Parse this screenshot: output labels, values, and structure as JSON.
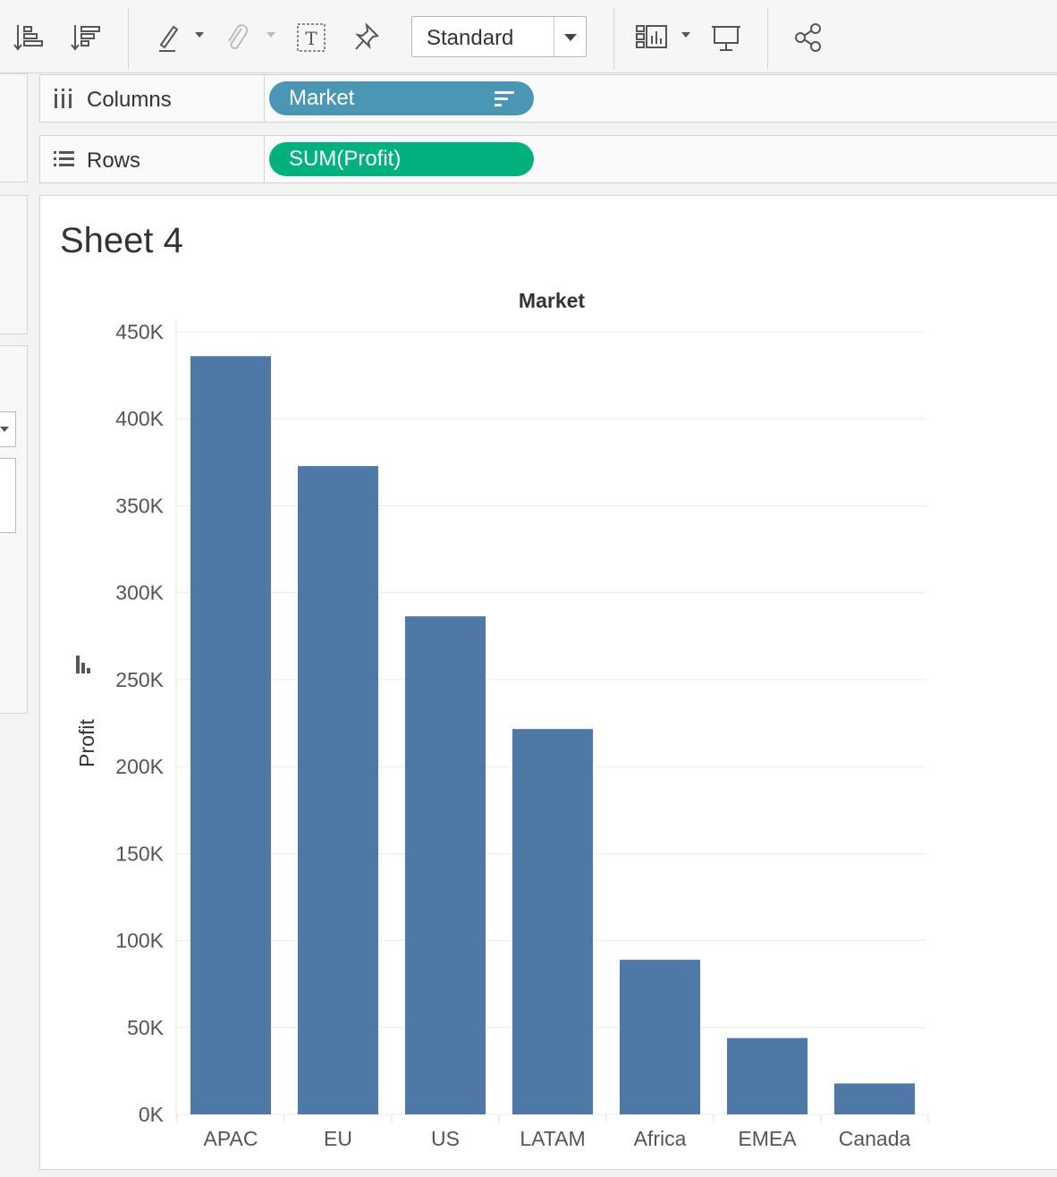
{
  "toolbar": {
    "fit_label": "Standard",
    "icons": [
      "sort-ascending-icon",
      "sort-descending-icon",
      "highlight-icon",
      "attach-icon",
      "text-label-icon",
      "pin-icon",
      "show-cards-icon",
      "presentation-icon",
      "share-icon"
    ]
  },
  "shelves": {
    "columns_label": "Columns",
    "columns_pill": "Market",
    "rows_label": "Rows",
    "rows_pill": "SUM(Profit)"
  },
  "sheet": {
    "title": "Sheet 4"
  },
  "chart_data": {
    "type": "bar",
    "title": "Market",
    "xlabel": "",
    "ylabel": "Profit",
    "categories": [
      "APAC",
      "EU",
      "US",
      "LATAM",
      "Africa",
      "EMEA",
      "Canada"
    ],
    "values": [
      436000,
      372800,
      286400,
      221600,
      88900,
      43900,
      17800
    ],
    "ylim": [
      0,
      450000
    ],
    "yticks": [
      0,
      50000,
      100000,
      150000,
      200000,
      250000,
      300000,
      350000,
      400000,
      450000
    ],
    "ytick_labels": [
      "0K",
      "50K",
      "100K",
      "150K",
      "200K",
      "250K",
      "300K",
      "350K",
      "400K",
      "450K"
    ],
    "bar_color": "#4e79a7",
    "grid": true
  }
}
